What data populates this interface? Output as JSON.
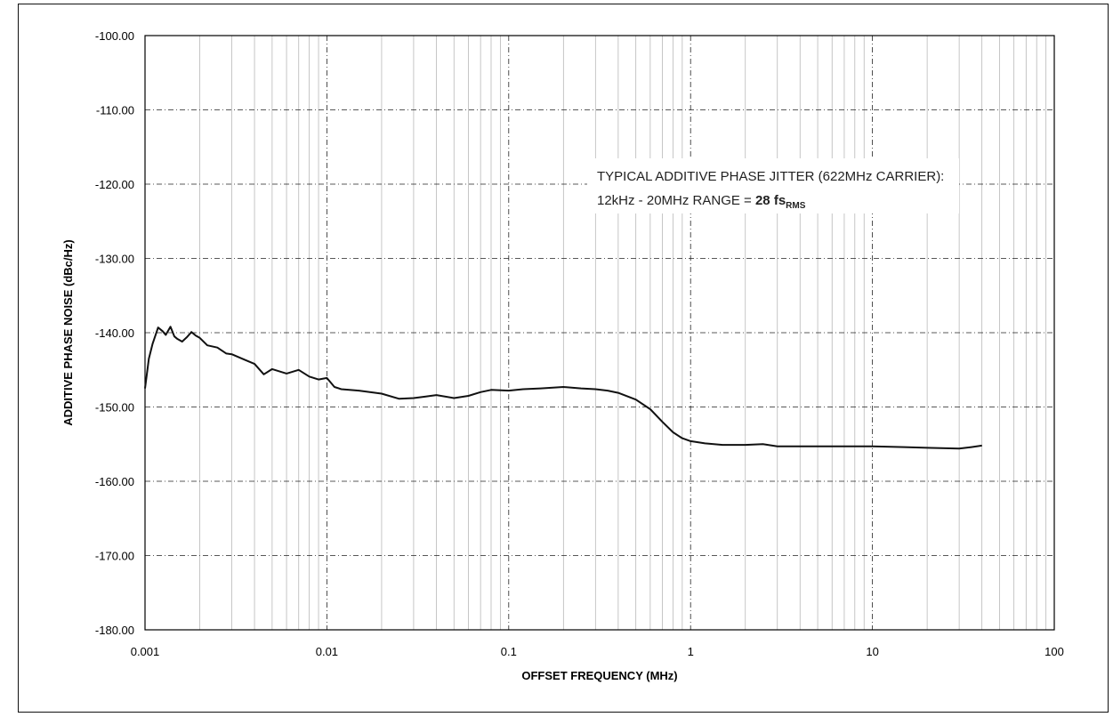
{
  "chart_data": {
    "type": "line",
    "title": "",
    "xlabel": "OFFSET FREQUENCY (MHz)",
    "ylabel": "ADDITIVE PHASE NOISE (dBc/Hz)",
    "x_scale": "log",
    "xlim": [
      0.001,
      100
    ],
    "ylim": [
      -180,
      -100
    ],
    "grid": true,
    "x_ticks": [
      {
        "value": 0.001,
        "label": "0.001"
      },
      {
        "value": 0.01,
        "label": "0.01"
      },
      {
        "value": 0.1,
        "label": "0.1"
      },
      {
        "value": 1,
        "label": "1"
      },
      {
        "value": 10,
        "label": "10"
      },
      {
        "value": 100,
        "label": "100"
      }
    ],
    "y_ticks": [
      {
        "value": -100,
        "label": "-100.00"
      },
      {
        "value": -110,
        "label": "-110.00"
      },
      {
        "value": -120,
        "label": "-120.00"
      },
      {
        "value": -130,
        "label": "-130.00"
      },
      {
        "value": -140,
        "label": "-140.00"
      },
      {
        "value": -150,
        "label": "-150.00"
      },
      {
        "value": -160,
        "label": "-160.00"
      },
      {
        "value": -170,
        "label": "-170.00"
      },
      {
        "value": -180,
        "label": "-180.00"
      }
    ],
    "series": [
      {
        "color": "#111111",
        "x": [
          0.001,
          0.00105,
          0.0011,
          0.00118,
          0.00125,
          0.0013,
          0.00138,
          0.00145,
          0.0015,
          0.0016,
          0.0017,
          0.0018,
          0.0019,
          0.002,
          0.0022,
          0.0025,
          0.0028,
          0.003,
          0.0035,
          0.004,
          0.0045,
          0.005,
          0.006,
          0.007,
          0.008,
          0.009,
          0.01,
          0.011,
          0.012,
          0.015,
          0.02,
          0.025,
          0.03,
          0.035,
          0.04,
          0.05,
          0.06,
          0.07,
          0.08,
          0.1,
          0.12,
          0.15,
          0.2,
          0.25,
          0.3,
          0.35,
          0.4,
          0.5,
          0.6,
          0.7,
          0.8,
          0.9,
          1.0,
          1.2,
          1.5,
          2.0,
          2.5,
          3.0,
          4.0,
          5.0,
          7.0,
          10,
          15,
          20,
          30,
          35,
          40
        ],
        "y": [
          -147.5,
          -143.5,
          -141.5,
          -139.3,
          -139.8,
          -140.3,
          -139.2,
          -140.5,
          -140.8,
          -141.2,
          -140.6,
          -139.9,
          -140.4,
          -140.7,
          -141.7,
          -142.0,
          -142.8,
          -142.9,
          -143.6,
          -144.2,
          -145.6,
          -144.9,
          -145.5,
          -145.0,
          -145.9,
          -146.3,
          -146.1,
          -147.3,
          -147.6,
          -147.8,
          -148.2,
          -148.9,
          -148.8,
          -148.6,
          -148.4,
          -148.8,
          -148.5,
          -148.0,
          -147.7,
          -147.8,
          -147.6,
          -147.5,
          -147.3,
          -147.5,
          -147.6,
          -147.8,
          -148.1,
          -149.0,
          -150.3,
          -152.0,
          -153.4,
          -154.2,
          -154.6,
          -154.9,
          -155.1,
          -155.1,
          -155.0,
          -155.3,
          -155.3,
          -155.3,
          -155.3,
          -155.3,
          -155.4,
          -155.5,
          -155.6,
          -155.4,
          -155.2
        ]
      }
    ],
    "annotation": {
      "line1": "TYPICAL ADDITIVE  PHASE JITTER (622MHz CARRIER):",
      "line2_prefix": "12kHz - 20MHz RANGE = ",
      "line2_value": "28 fs",
      "line2_subscript": "RMS"
    }
  }
}
